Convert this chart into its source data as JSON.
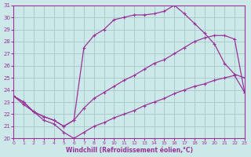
{
  "title": "",
  "xlabel": "Windchill (Refroidissement éolien,°C)",
  "ylabel": "",
  "background_color": "#cde8e8",
  "line_color": "#993399",
  "grid_color": "#aacccc",
  "xlim": [
    0,
    23
  ],
  "ylim": [
    20,
    31
  ],
  "xticks": [
    0,
    1,
    2,
    3,
    4,
    5,
    6,
    7,
    8,
    9,
    10,
    11,
    12,
    13,
    14,
    15,
    16,
    17,
    18,
    19,
    20,
    21,
    22,
    23
  ],
  "yticks": [
    20,
    21,
    22,
    23,
    24,
    25,
    26,
    27,
    28,
    29,
    30,
    31
  ],
  "curve1_x": [
    0,
    1,
    2,
    3,
    4,
    5,
    6,
    7,
    8,
    9,
    10,
    11,
    12,
    13,
    14,
    15,
    16,
    17,
    18,
    19,
    20,
    21,
    22,
    23
  ],
  "curve1_y": [
    23.5,
    23.0,
    22.2,
    21.8,
    21.5,
    21.0,
    21.5,
    27.5,
    28.5,
    29.0,
    29.8,
    30.0,
    30.2,
    30.2,
    30.3,
    30.5,
    31.0,
    30.3,
    29.5,
    28.7,
    27.8,
    26.2,
    25.3,
    25.0
  ],
  "curve2_x": [
    0,
    1,
    2,
    3,
    4,
    5,
    6,
    7,
    8,
    9,
    10,
    11,
    12,
    13,
    14,
    15,
    16,
    17,
    18,
    19,
    20,
    21,
    22,
    23
  ],
  "curve2_y": [
    23.5,
    23.0,
    22.2,
    21.8,
    21.5,
    21.0,
    21.5,
    22.5,
    23.3,
    23.8,
    24.3,
    24.8,
    25.2,
    25.7,
    26.2,
    26.5,
    27.0,
    27.5,
    28.0,
    28.3,
    28.5,
    28.5,
    28.2,
    23.8
  ],
  "curve3_x": [
    0,
    1,
    2,
    3,
    4,
    5,
    6,
    7,
    8,
    9,
    10,
    11,
    12,
    13,
    14,
    15,
    16,
    17,
    18,
    19,
    20,
    21,
    22,
    23
  ],
  "curve3_y": [
    23.5,
    22.8,
    22.2,
    21.5,
    21.2,
    20.5,
    20.0,
    20.5,
    21.0,
    21.3,
    21.7,
    22.0,
    22.3,
    22.7,
    23.0,
    23.3,
    23.7,
    24.0,
    24.3,
    24.5,
    24.8,
    25.0,
    25.2,
    23.8
  ]
}
